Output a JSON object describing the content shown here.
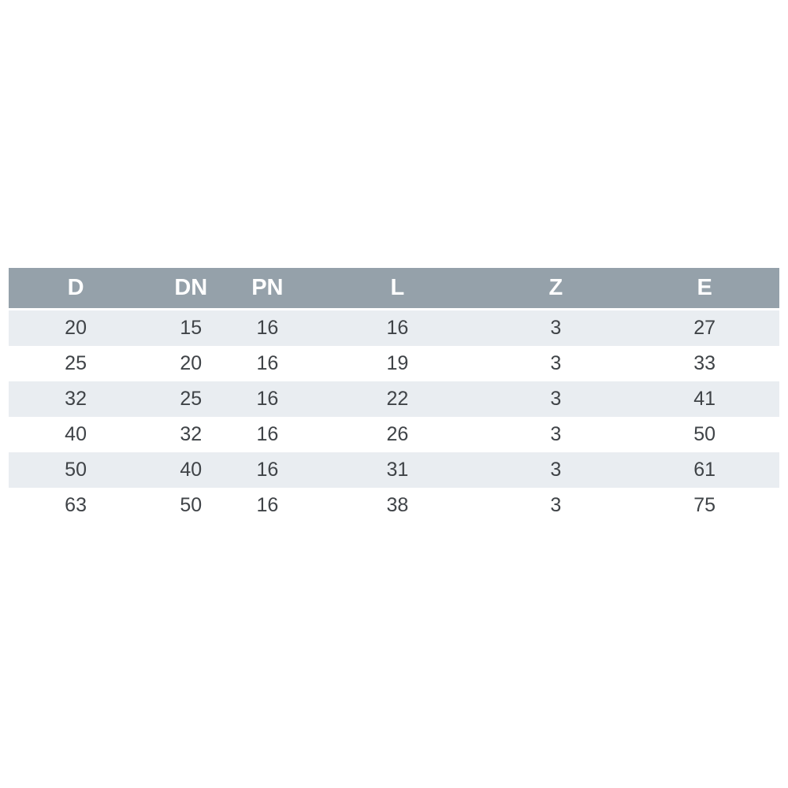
{
  "table": {
    "columns": [
      "D",
      "DN",
      "PN",
      "L",
      "Z",
      "E"
    ],
    "rows": [
      [
        "20",
        "15",
        "16",
        "16",
        "3",
        "27"
      ],
      [
        "25",
        "20",
        "16",
        "19",
        "3",
        "33"
      ],
      [
        "32",
        "25",
        "16",
        "22",
        "3",
        "41"
      ],
      [
        "40",
        "32",
        "16",
        "26",
        "3",
        "50"
      ],
      [
        "50",
        "40",
        "16",
        "31",
        "3",
        "61"
      ],
      [
        "63",
        "50",
        "16",
        "38",
        "3",
        "75"
      ]
    ],
    "colors": {
      "header_bg": "#95a1aa",
      "header_text": "#ffffff",
      "row_alt_bg": "#e9edf1",
      "row_bg": "#ffffff",
      "cell_text": "#3f4347"
    }
  }
}
